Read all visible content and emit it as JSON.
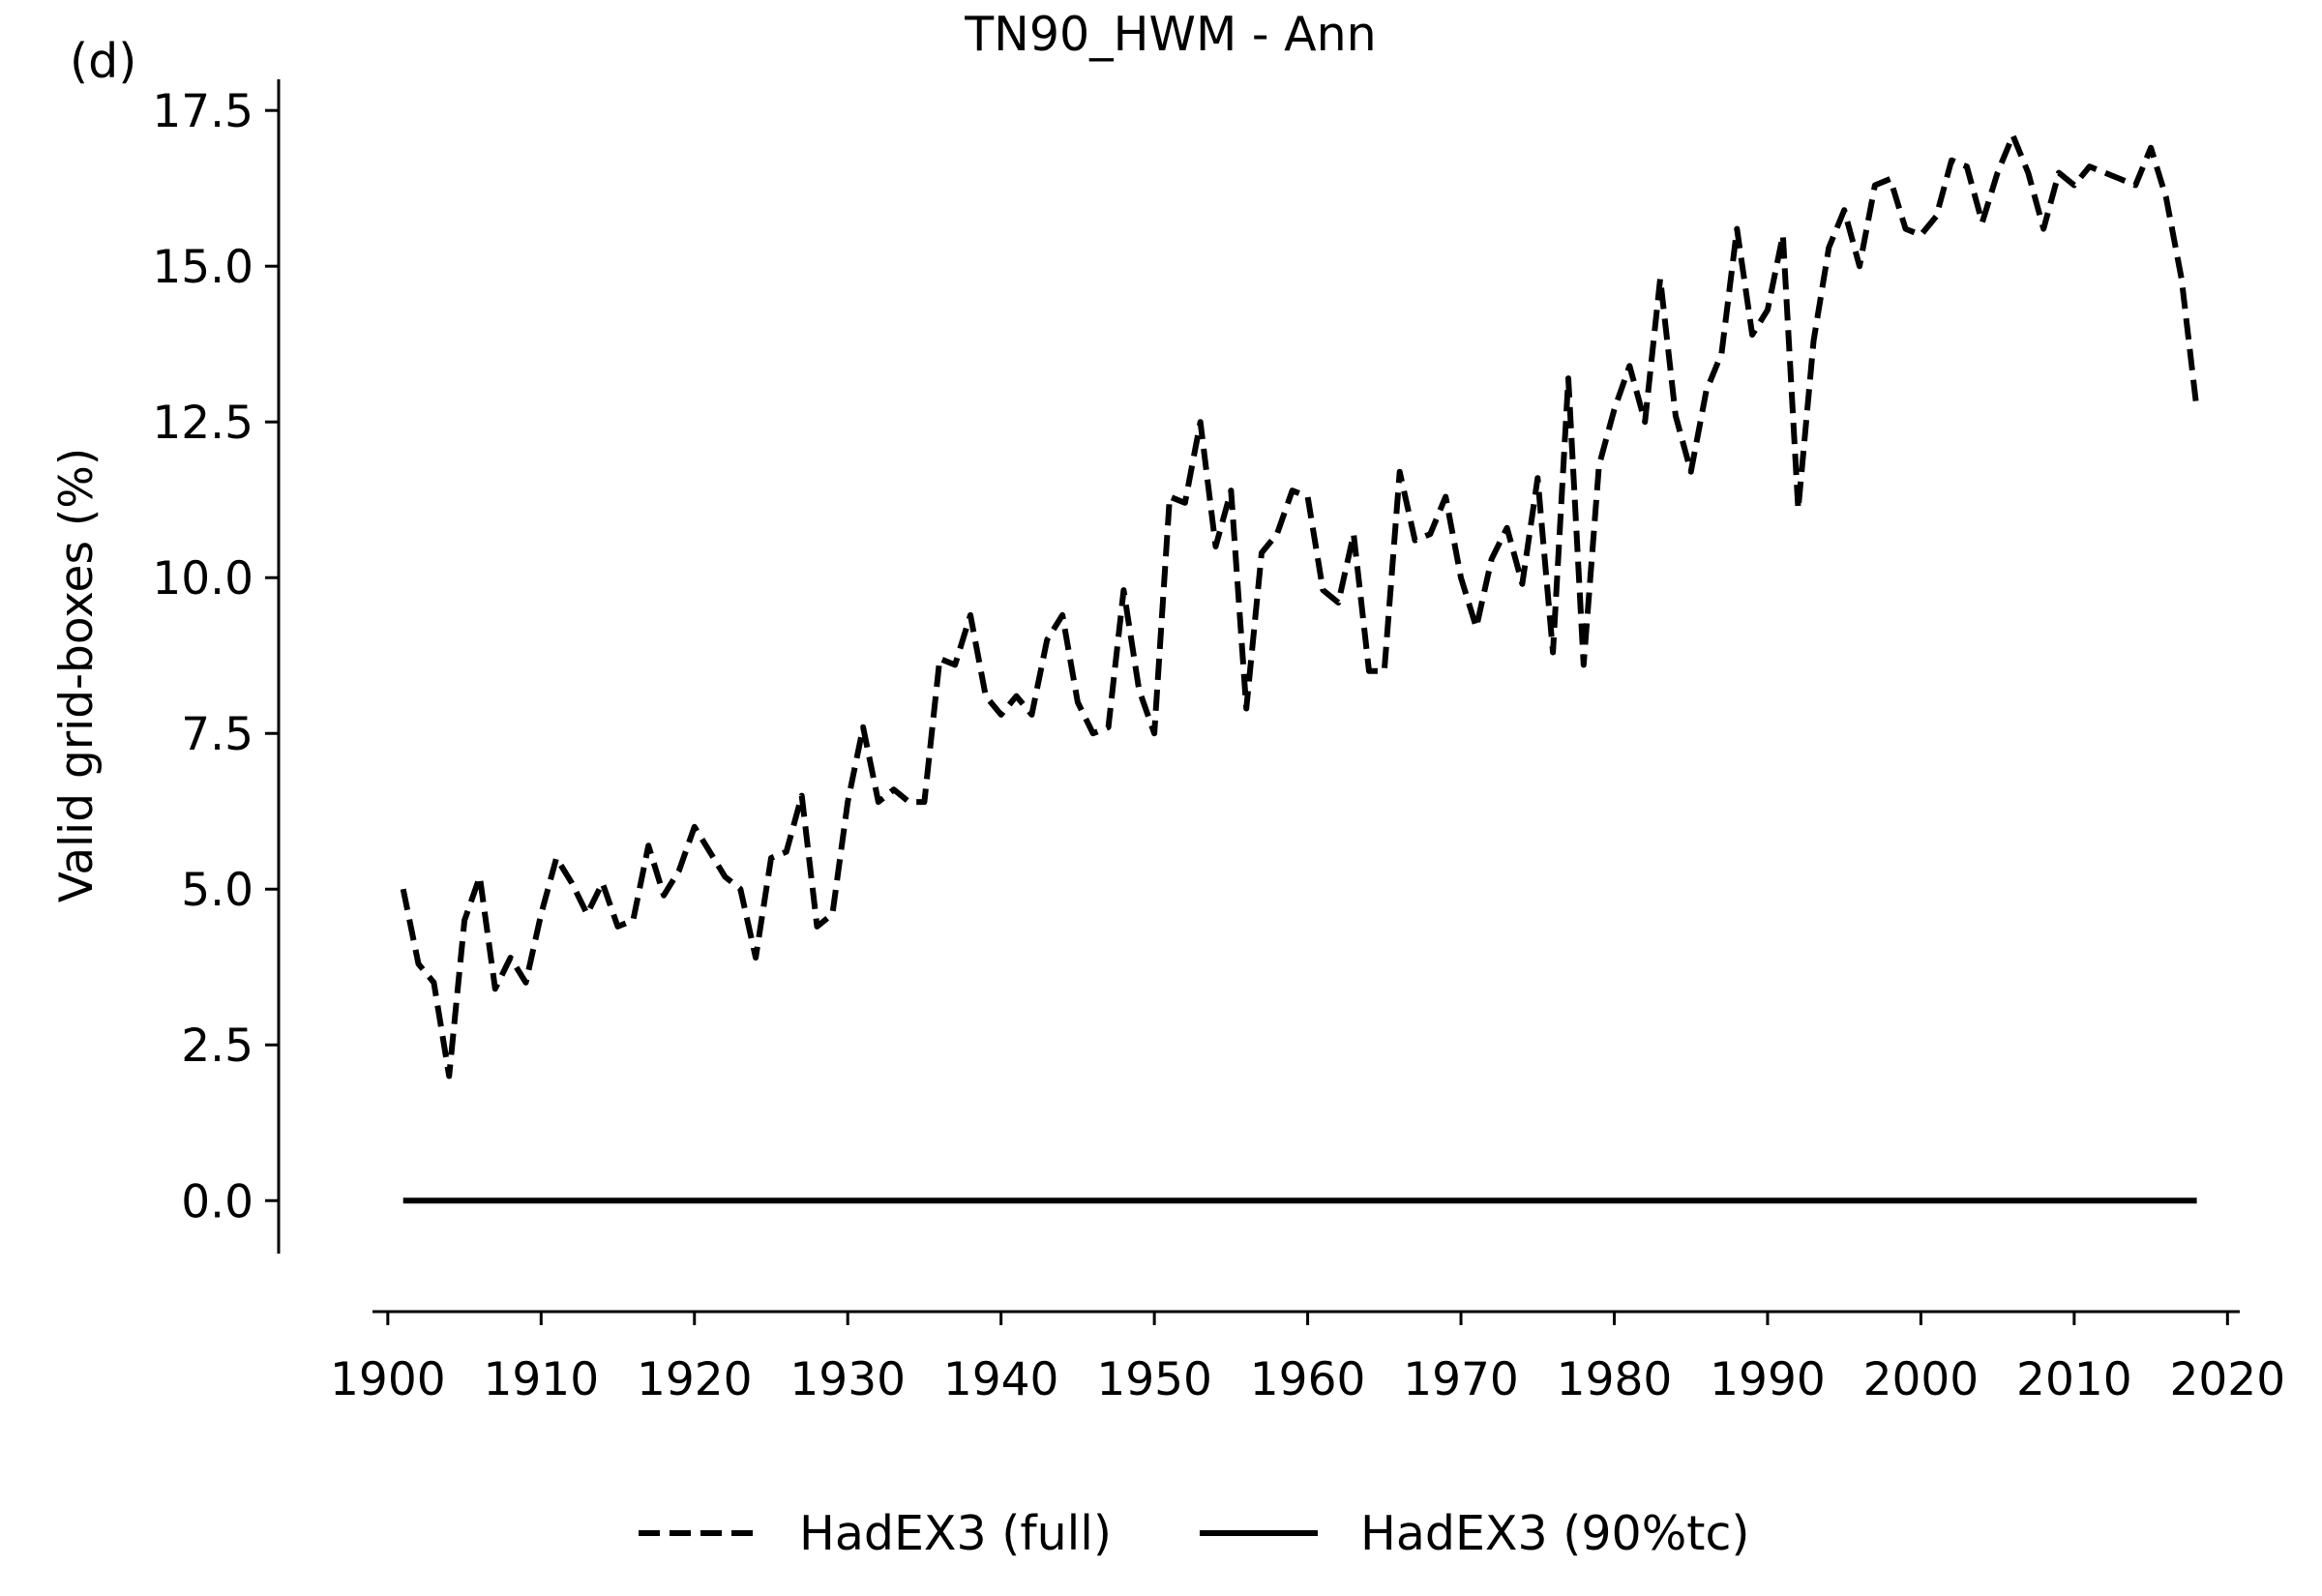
{
  "chart_data": {
    "type": "line",
    "title": "TN90_HWM - Ann",
    "panel_label": "(d)",
    "xlabel": "",
    "ylabel": "Valid grid-boxes (%)",
    "xlim": [
      1899,
      2020.8
    ],
    "ylim": [
      -0.85,
      18.0
    ],
    "xticks": [
      1900,
      1910,
      1920,
      1930,
      1940,
      1950,
      1960,
      1970,
      1980,
      1990,
      2000,
      2010,
      2020
    ],
    "xtick_labels": [
      "1900",
      "1910",
      "1920",
      "1930",
      "1940",
      "1950",
      "1960",
      "1970",
      "1980",
      "1990",
      "2000",
      "2010",
      "2020"
    ],
    "yticks": [
      0.0,
      2.5,
      5.0,
      7.5,
      10.0,
      12.5,
      15.0,
      17.5
    ],
    "ytick_labels": [
      "0.0",
      "2.5",
      "5.0",
      "7.5",
      "10.0",
      "12.5",
      "15.0",
      "17.5"
    ],
    "grid": false,
    "legend_position": "bottom-center",
    "series": [
      {
        "name": "HadEX3 (full)",
        "style": "dashed",
        "color": "#000000",
        "x": [
          1901,
          1902,
          1903,
          1904,
          1905,
          1906,
          1907,
          1908,
          1909,
          1910,
          1911,
          1912,
          1913,
          1914,
          1915,
          1916,
          1917,
          1918,
          1919,
          1920,
          1921,
          1922,
          1923,
          1924,
          1925,
          1926,
          1927,
          1928,
          1929,
          1930,
          1931,
          1932,
          1933,
          1934,
          1935,
          1936,
          1937,
          1938,
          1939,
          1940,
          1941,
          1942,
          1943,
          1944,
          1945,
          1946,
          1947,
          1948,
          1949,
          1950,
          1951,
          1952,
          1953,
          1954,
          1955,
          1956,
          1957,
          1958,
          1959,
          1960,
          1961,
          1962,
          1963,
          1964,
          1965,
          1966,
          1967,
          1968,
          1969,
          1970,
          1971,
          1972,
          1973,
          1974,
          1975,
          1976,
          1977,
          1978,
          1979,
          1980,
          1981,
          1982,
          1983,
          1984,
          1985,
          1986,
          1987,
          1988,
          1989,
          1990,
          1991,
          1992,
          1993,
          1994,
          1995,
          1996,
          1997,
          1998,
          1999,
          2000,
          2001,
          2002,
          2003,
          2004,
          2005,
          2006,
          2007,
          2008,
          2009,
          2010,
          2011,
          2012,
          2013,
          2014,
          2015,
          2016,
          2017,
          2018
        ],
        "values": [
          5.0,
          3.8,
          3.5,
          2.0,
          4.5,
          5.2,
          3.4,
          3.9,
          3.5,
          4.6,
          5.5,
          5.1,
          4.6,
          5.1,
          4.4,
          4.5,
          5.7,
          4.9,
          5.3,
          6.0,
          5.6,
          5.2,
          5.0,
          3.9,
          5.5,
          5.6,
          6.5,
          4.4,
          4.6,
          6.4,
          7.6,
          6.4,
          6.6,
          6.4,
          6.4,
          8.7,
          8.6,
          9.4,
          8.1,
          7.8,
          8.1,
          7.8,
          9.0,
          9.4,
          8.0,
          7.5,
          7.6,
          9.8,
          8.2,
          7.5,
          11.3,
          11.2,
          12.5,
          10.5,
          11.4,
          7.9,
          10.4,
          10.7,
          11.4,
          11.3,
          9.8,
          9.6,
          10.7,
          8.5,
          8.5,
          11.7,
          10.6,
          10.7,
          11.3,
          10.0,
          9.2,
          10.3,
          10.8,
          9.9,
          11.6,
          8.8,
          13.2,
          8.6,
          11.8,
          12.7,
          13.4,
          12.5,
          14.8,
          12.6,
          11.7,
          13.0,
          13.6,
          15.6,
          13.9,
          14.3,
          15.5,
          11.1,
          13.8,
          15.3,
          15.9,
          15.0,
          16.3,
          16.4,
          15.6,
          15.5,
          15.8,
          16.7,
          16.6,
          15.7,
          16.5,
          17.1,
          16.5,
          15.6,
          16.5,
          16.3,
          16.6,
          16.5,
          16.4,
          16.3,
          16.9,
          16.1,
          14.8,
          12.7
        ]
      },
      {
        "name": "HadEX3 (90%tc)",
        "style": "solid",
        "color": "#000000",
        "x": [
          1901,
          2018
        ],
        "values": [
          0.0,
          0.0
        ]
      }
    ]
  }
}
